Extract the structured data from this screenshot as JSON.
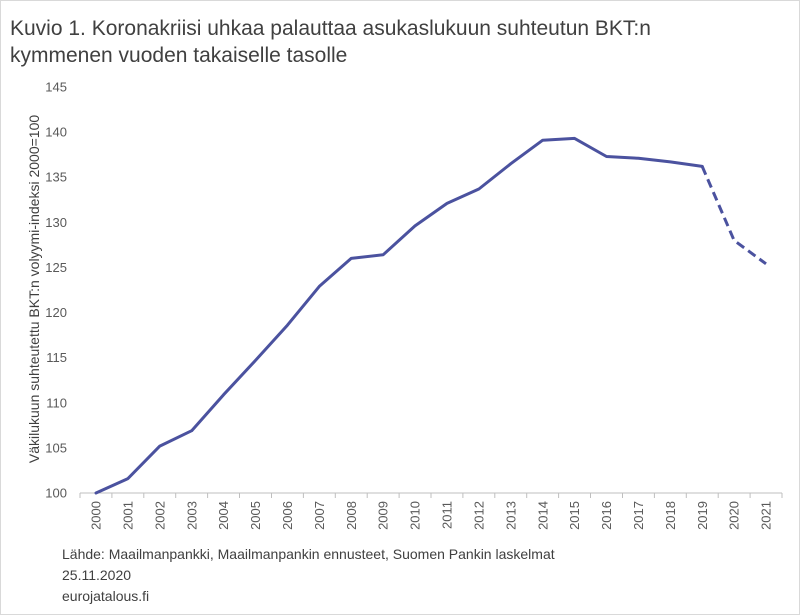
{
  "chart_data": {
    "type": "line",
    "title": "Kuvio 1. Koronakriisi uhkaa palauttaa asukaslukuun suhteutun BKT:n kymmenen vuoden takaiselle tasolle",
    "xlabel": "",
    "ylabel": "Väkilukuun suhteutettu BKT:n volyymi-indeksi 2000=100",
    "categories": [
      "2000",
      "2001",
      "2002",
      "2003",
      "2004",
      "2005",
      "2006",
      "2007",
      "2008",
      "2009",
      "2010",
      "2011",
      "2012",
      "2013",
      "2014",
      "2015",
      "2016",
      "2017",
      "2018",
      "2019",
      "2020",
      "2021"
    ],
    "values": [
      100.0,
      101.6,
      105.2,
      106.9,
      110.9,
      114.7,
      118.6,
      122.9,
      126.0,
      126.4,
      129.6,
      132.1,
      133.7,
      136.5,
      139.1,
      139.3,
      137.3,
      137.1,
      136.7,
      136.2,
      128.0,
      125.4
    ],
    "ylim": [
      100,
      145
    ],
    "y_ticks": [
      100,
      105,
      110,
      115,
      120,
      125,
      130,
      135,
      140,
      145
    ],
    "dashed_from": "2019",
    "line_color": "#4B529F",
    "grid": false,
    "legend": "none"
  },
  "footer": {
    "source": "Lähde: Maailmanpankki, Maailmanpankin ennusteet, Suomen Pankin laskelmat",
    "date": "25.11.2020",
    "site": "eurojatalous.fi"
  }
}
